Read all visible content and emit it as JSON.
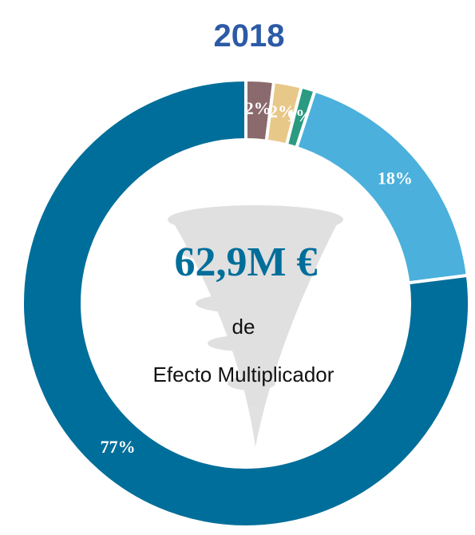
{
  "chart_data": {
    "type": "donut",
    "title": "2018",
    "categories": [
      null,
      null,
      null,
      null,
      null
    ],
    "values": [
      2,
      2,
      1,
      18,
      77
    ],
    "value_labels": [
      "2%",
      "2%",
      "1%",
      "18%",
      "77%"
    ],
    "colors": [
      "#8a6a6d",
      "#e8c888",
      "#2a9a80",
      "#4bb0db",
      "#006e9a"
    ],
    "center_text": [
      "62,9M €",
      "de",
      "Efecto Multiplicador"
    ]
  }
}
